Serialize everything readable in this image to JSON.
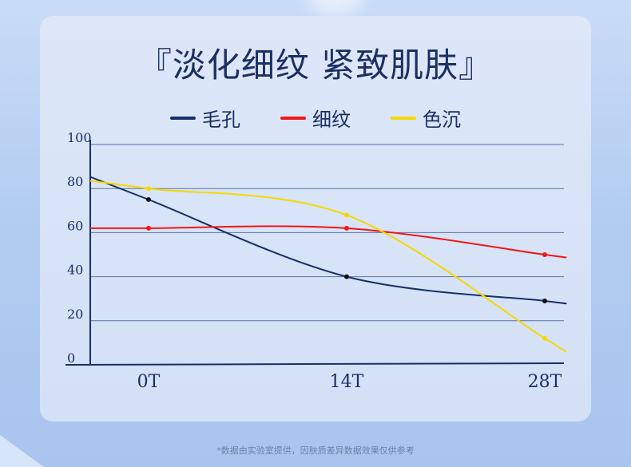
{
  "title": "『淡化细纹 紧致肌肤』",
  "footnote": "*数据由实验室提供，因肤质差异数据效果仅供参考",
  "chart_data": {
    "type": "line",
    "categories": [
      "0T",
      "14T",
      "28T"
    ],
    "y_ticks": [
      "0",
      "20",
      "40",
      "60",
      "80",
      "100"
    ],
    "ylim": [
      0,
      100
    ],
    "grid": true,
    "legend_position": "top",
    "series": [
      {
        "name": "毛孔",
        "color": "#17306a",
        "values": [
          75,
          40,
          29
        ]
      },
      {
        "name": "细纹",
        "color": "#f01818",
        "values": [
          62,
          62,
          50
        ]
      },
      {
        "name": "色沉",
        "color": "#f5d800",
        "values": [
          80,
          68,
          12
        ]
      }
    ]
  }
}
